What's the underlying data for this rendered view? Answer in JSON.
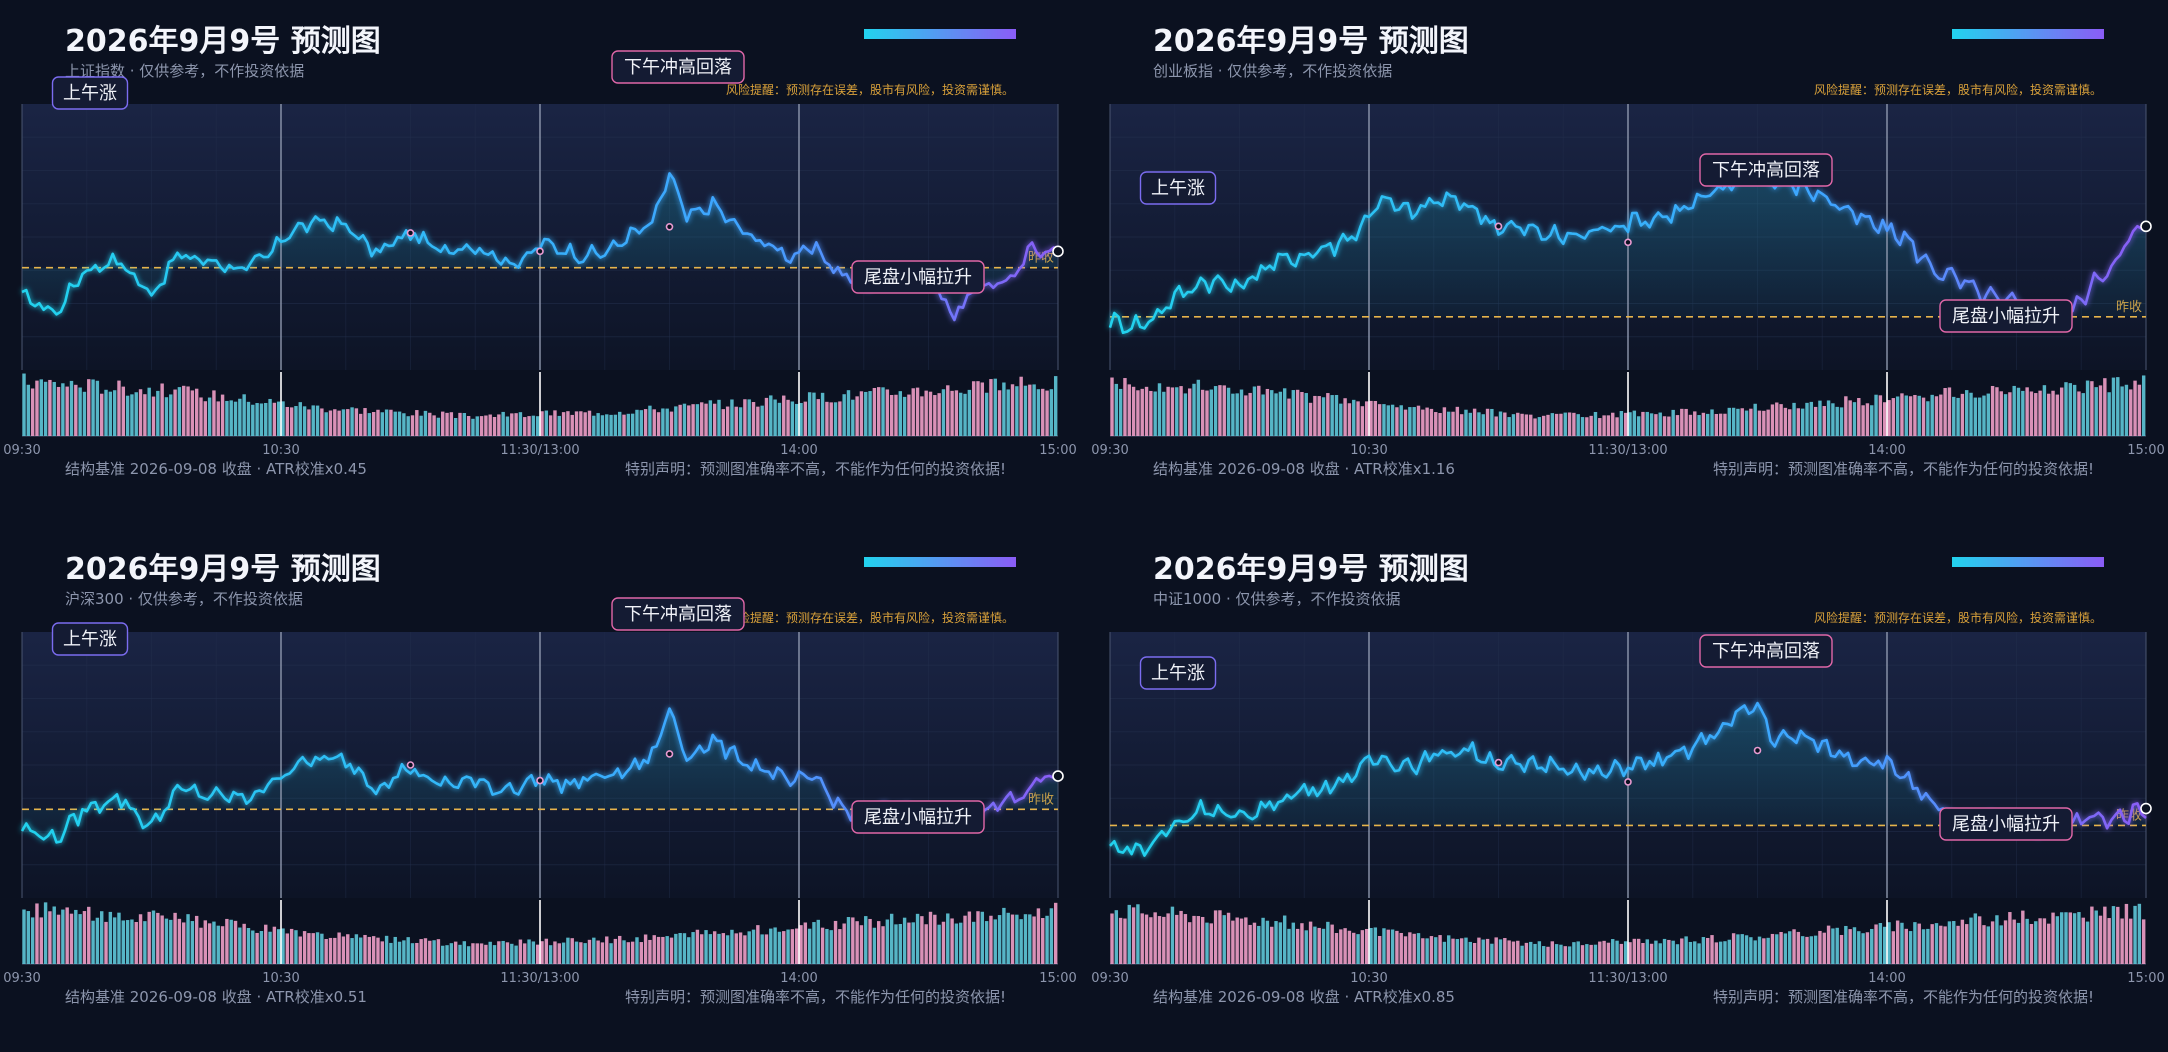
{
  "panels": [
    {
      "title": "2026年9月9号 预测图",
      "subtitle": "上证指数 · 仅供参考，不作投资依据",
      "risk": "风险提醒：预测存在误差，股市有风险，投资需谨慎。",
      "footer_left": "结构基准 2026-09-08 收盘 · ATR校准x0.45",
      "footer_right": "特别声明：预测图准确率不高，不能作为任何的投资依据!",
      "annotations": {
        "morning": "上午涨",
        "afternoon": "下午冲高回落",
        "close": "尾盘小幅拉升",
        "prev_close": "昨收"
      },
      "chart_data": {
        "type": "line",
        "x_ticks": [
          "09:30",
          "10:30",
          "11:30/13:00",
          "14:00",
          "15:00"
        ],
        "prev_close": 0,
        "ylim": [
          -5,
          8
        ],
        "keypoints": [
          [
            0,
            -1.4
          ],
          [
            8,
            -2.2
          ],
          [
            14,
            -0.2
          ],
          [
            22,
            0.4
          ],
          [
            30,
            -1.3
          ],
          [
            36,
            0.6
          ],
          [
            44,
            0.3
          ],
          [
            52,
            -0.1
          ],
          [
            58,
            0.8
          ],
          [
            62,
            1.8
          ],
          [
            70,
            2.3
          ],
          [
            76,
            1.9
          ],
          [
            82,
            0.7
          ],
          [
            90,
            1.7
          ],
          [
            96,
            0.9
          ],
          [
            104,
            1.1
          ],
          [
            110,
            0.5
          ],
          [
            116,
            0.2
          ],
          [
            120,
            1.2
          ],
          [
            124,
            1.0
          ],
          [
            130,
            0.6
          ],
          [
            136,
            0.8
          ],
          [
            140,
            1.5
          ],
          [
            146,
            2.1
          ],
          [
            150,
            4.6
          ],
          [
            154,
            2.4
          ],
          [
            160,
            3.1
          ],
          [
            166,
            1.9
          ],
          [
            172,
            1.2
          ],
          [
            178,
            0.6
          ],
          [
            184,
            0.9
          ],
          [
            190,
            -0.4
          ],
          [
            196,
            -0.9
          ],
          [
            200,
            0.1
          ],
          [
            206,
            -0.6
          ],
          [
            210,
            -0.4
          ],
          [
            216,
            -2.3
          ],
          [
            222,
            -0.9
          ],
          [
            230,
            -0.5
          ],
          [
            234,
            1.0
          ],
          [
            240,
            0.8
          ]
        ],
        "volume": [
          1.0,
          0.82,
          0.52,
          0.36,
          0.44,
          0.63,
          0.82,
          0.96
        ],
        "markers": [
          [
            90,
            1.7
          ],
          [
            120,
            0.8
          ],
          [
            150,
            2.0
          ],
          [
            240,
            0.8
          ]
        ]
      }
    },
    {
      "title": "2026年9月9号 预测图",
      "subtitle": "创业板指 · 仅供参考，不作投资依据",
      "risk": "风险提醒：预测存在误差，股市有风险，投资需谨慎。",
      "footer_left": "结构基准 2026-09-08 收盘 · ATR校准x1.16",
      "footer_right": "特别声明：预测图准确率不高，不能作为任何的投资依据!",
      "annotations": {
        "morning": "上午涨",
        "afternoon": "下午冲高回落",
        "close": "尾盘小幅拉升",
        "prev_close": "昨收"
      },
      "chart_data": {
        "type": "line",
        "x_ticks": [
          "09:30",
          "10:30",
          "11:30/13:00",
          "14:00",
          "15:00"
        ],
        "prev_close": 0,
        "ylim": [
          -2,
          8
        ],
        "keypoints": [
          [
            0,
            -0.2
          ],
          [
            8,
            -0.3
          ],
          [
            14,
            0.6
          ],
          [
            22,
            1.4
          ],
          [
            30,
            1.1
          ],
          [
            36,
            1.9
          ],
          [
            44,
            2.3
          ],
          [
            52,
            2.7
          ],
          [
            58,
            3.3
          ],
          [
            62,
            4.4
          ],
          [
            70,
            3.9
          ],
          [
            76,
            4.4
          ],
          [
            82,
            4.3
          ],
          [
            90,
            3.4
          ],
          [
            96,
            3.3
          ],
          [
            104,
            3.0
          ],
          [
            110,
            3.1
          ],
          [
            116,
            3.4
          ],
          [
            120,
            3.6
          ],
          [
            126,
            3.7
          ],
          [
            132,
            4.0
          ],
          [
            140,
            4.6
          ],
          [
            146,
            5.2
          ],
          [
            150,
            5.6
          ],
          [
            154,
            5.0
          ],
          [
            160,
            4.9
          ],
          [
            166,
            4.5
          ],
          [
            172,
            3.8
          ],
          [
            178,
            3.4
          ],
          [
            184,
            3.0
          ],
          [
            190,
            1.9
          ],
          [
            196,
            1.4
          ],
          [
            200,
            1.0
          ],
          [
            206,
            0.6
          ],
          [
            212,
            0.4
          ],
          [
            218,
            0.1
          ],
          [
            222,
            0.0
          ],
          [
            226,
            0.9
          ],
          [
            232,
            2.0
          ],
          [
            236,
            2.9
          ],
          [
            240,
            3.4
          ]
        ],
        "volume": [
          1.0,
          0.82,
          0.52,
          0.36,
          0.44,
          0.63,
          0.82,
          0.96
        ],
        "markers": [
          [
            90,
            3.4
          ],
          [
            120,
            2.8
          ],
          [
            210,
            0.3
          ],
          [
            240,
            3.4
          ]
        ]
      }
    },
    {
      "title": "2026年9月9号 预测图",
      "subtitle": "沪深300 · 仅供参考，不作投资依据",
      "risk": "风险提醒：预测存在误差，股市有风险，投资需谨慎。",
      "footer_left": "结构基准 2026-09-08 收盘 · ATR校准x0.51",
      "footer_right": "特别声明：预测图准确率不高，不能作为任何的投资依据!",
      "annotations": {
        "morning": "上午涨",
        "afternoon": "下午冲高回落",
        "close": "尾盘小幅拉升",
        "prev_close": "昨收"
      },
      "chart_data": {
        "type": "line",
        "x_ticks": [
          "09:30",
          "10:30",
          "11:30/13:00",
          "14:00",
          "15:00"
        ],
        "prev_close": 0,
        "ylim": [
          -4,
          8
        ],
        "keypoints": [
          [
            0,
            -0.9
          ],
          [
            8,
            -1.3
          ],
          [
            14,
            -0.1
          ],
          [
            22,
            0.6
          ],
          [
            30,
            -0.8
          ],
          [
            36,
            0.9
          ],
          [
            44,
            0.6
          ],
          [
            52,
            0.5
          ],
          [
            58,
            1.2
          ],
          [
            62,
            1.9
          ],
          [
            70,
            2.3
          ],
          [
            76,
            2.1
          ],
          [
            82,
            1.0
          ],
          [
            90,
            1.9
          ],
          [
            96,
            1.1
          ],
          [
            104,
            1.3
          ],
          [
            110,
            0.9
          ],
          [
            116,
            1.1
          ],
          [
            120,
            1.4
          ],
          [
            126,
            1.1
          ],
          [
            132,
            1.4
          ],
          [
            140,
            1.7
          ],
          [
            146,
            2.4
          ],
          [
            150,
            4.5
          ],
          [
            154,
            2.4
          ],
          [
            160,
            3.1
          ],
          [
            166,
            2.3
          ],
          [
            172,
            1.8
          ],
          [
            178,
            1.2
          ],
          [
            184,
            1.4
          ],
          [
            190,
            0.0
          ],
          [
            196,
            -0.2
          ],
          [
            200,
            0.0
          ],
          [
            206,
            -0.1
          ],
          [
            212,
            -0.3
          ],
          [
            218,
            -0.5
          ],
          [
            222,
            -0.1
          ],
          [
            228,
            0.3
          ],
          [
            232,
            0.6
          ],
          [
            236,
            1.5
          ],
          [
            240,
            1.5
          ]
        ],
        "volume": [
          1.0,
          0.82,
          0.52,
          0.36,
          0.44,
          0.63,
          0.82,
          0.96
        ],
        "markers": [
          [
            90,
            2.0
          ],
          [
            120,
            1.3
          ],
          [
            150,
            2.5
          ],
          [
            240,
            1.5
          ]
        ]
      }
    },
    {
      "title": "2026年9月9号 预测图",
      "subtitle": "中证1000 · 仅供参考，不作投资依据",
      "risk": "风险提醒：预测存在误差，股市有风险，投资需谨慎。",
      "footer_left": "结构基准 2026-09-08 收盘 · ATR校准x0.85",
      "footer_right": "特别声明：预测图准确率不高，不能作为任何的投资依据!",
      "annotations": {
        "morning": "上午涨",
        "afternoon": "下午冲高回落",
        "close": "尾盘小幅拉升",
        "prev_close": "昨收"
      },
      "chart_data": {
        "type": "line",
        "x_ticks": [
          "09:30",
          "10:30",
          "11:30/13:00",
          "14:00",
          "15:00"
        ],
        "prev_close": 0,
        "ylim": [
          -3,
          8
        ],
        "keypoints": [
          [
            0,
            -0.9
          ],
          [
            8,
            -1.0
          ],
          [
            14,
            -0.1
          ],
          [
            22,
            0.8
          ],
          [
            30,
            0.2
          ],
          [
            36,
            0.8
          ],
          [
            44,
            1.4
          ],
          [
            52,
            1.7
          ],
          [
            58,
            2.3
          ],
          [
            62,
            2.8
          ],
          [
            70,
            2.5
          ],
          [
            76,
            2.9
          ],
          [
            82,
            3.2
          ],
          [
            90,
            2.6
          ],
          [
            96,
            2.4
          ],
          [
            104,
            2.6
          ],
          [
            110,
            2.1
          ],
          [
            116,
            2.2
          ],
          [
            120,
            2.5
          ],
          [
            126,
            2.6
          ],
          [
            132,
            2.9
          ],
          [
            140,
            3.8
          ],
          [
            146,
            4.6
          ],
          [
            150,
            5.0
          ],
          [
            154,
            3.5
          ],
          [
            160,
            3.7
          ],
          [
            166,
            3.2
          ],
          [
            172,
            2.8
          ],
          [
            178,
            2.7
          ],
          [
            184,
            2.1
          ],
          [
            190,
            0.8
          ],
          [
            196,
            0.4
          ],
          [
            200,
            0.1
          ],
          [
            206,
            0.2
          ],
          [
            212,
            -0.1
          ],
          [
            218,
            -0.3
          ],
          [
            222,
            0.1
          ],
          [
            228,
            0.3
          ],
          [
            232,
            0.3
          ],
          [
            236,
            0.5
          ],
          [
            240,
            0.7
          ]
        ],
        "volume": [
          1.0,
          0.82,
          0.52,
          0.36,
          0.44,
          0.63,
          0.82,
          0.96
        ],
        "markers": [
          [
            90,
            2.6
          ],
          [
            120,
            1.8
          ],
          [
            150,
            3.1
          ],
          [
            210,
            -0.3
          ],
          [
            240,
            0.7
          ]
        ]
      }
    }
  ],
  "colors": {
    "bg": "#0b1120",
    "plot": "#111a30",
    "line_a": "#22d3ee",
    "line_b": "#8b5cf6",
    "up": "#f0a0c8",
    "down": "#5ec8d8",
    "dash": "#e6b44c"
  }
}
